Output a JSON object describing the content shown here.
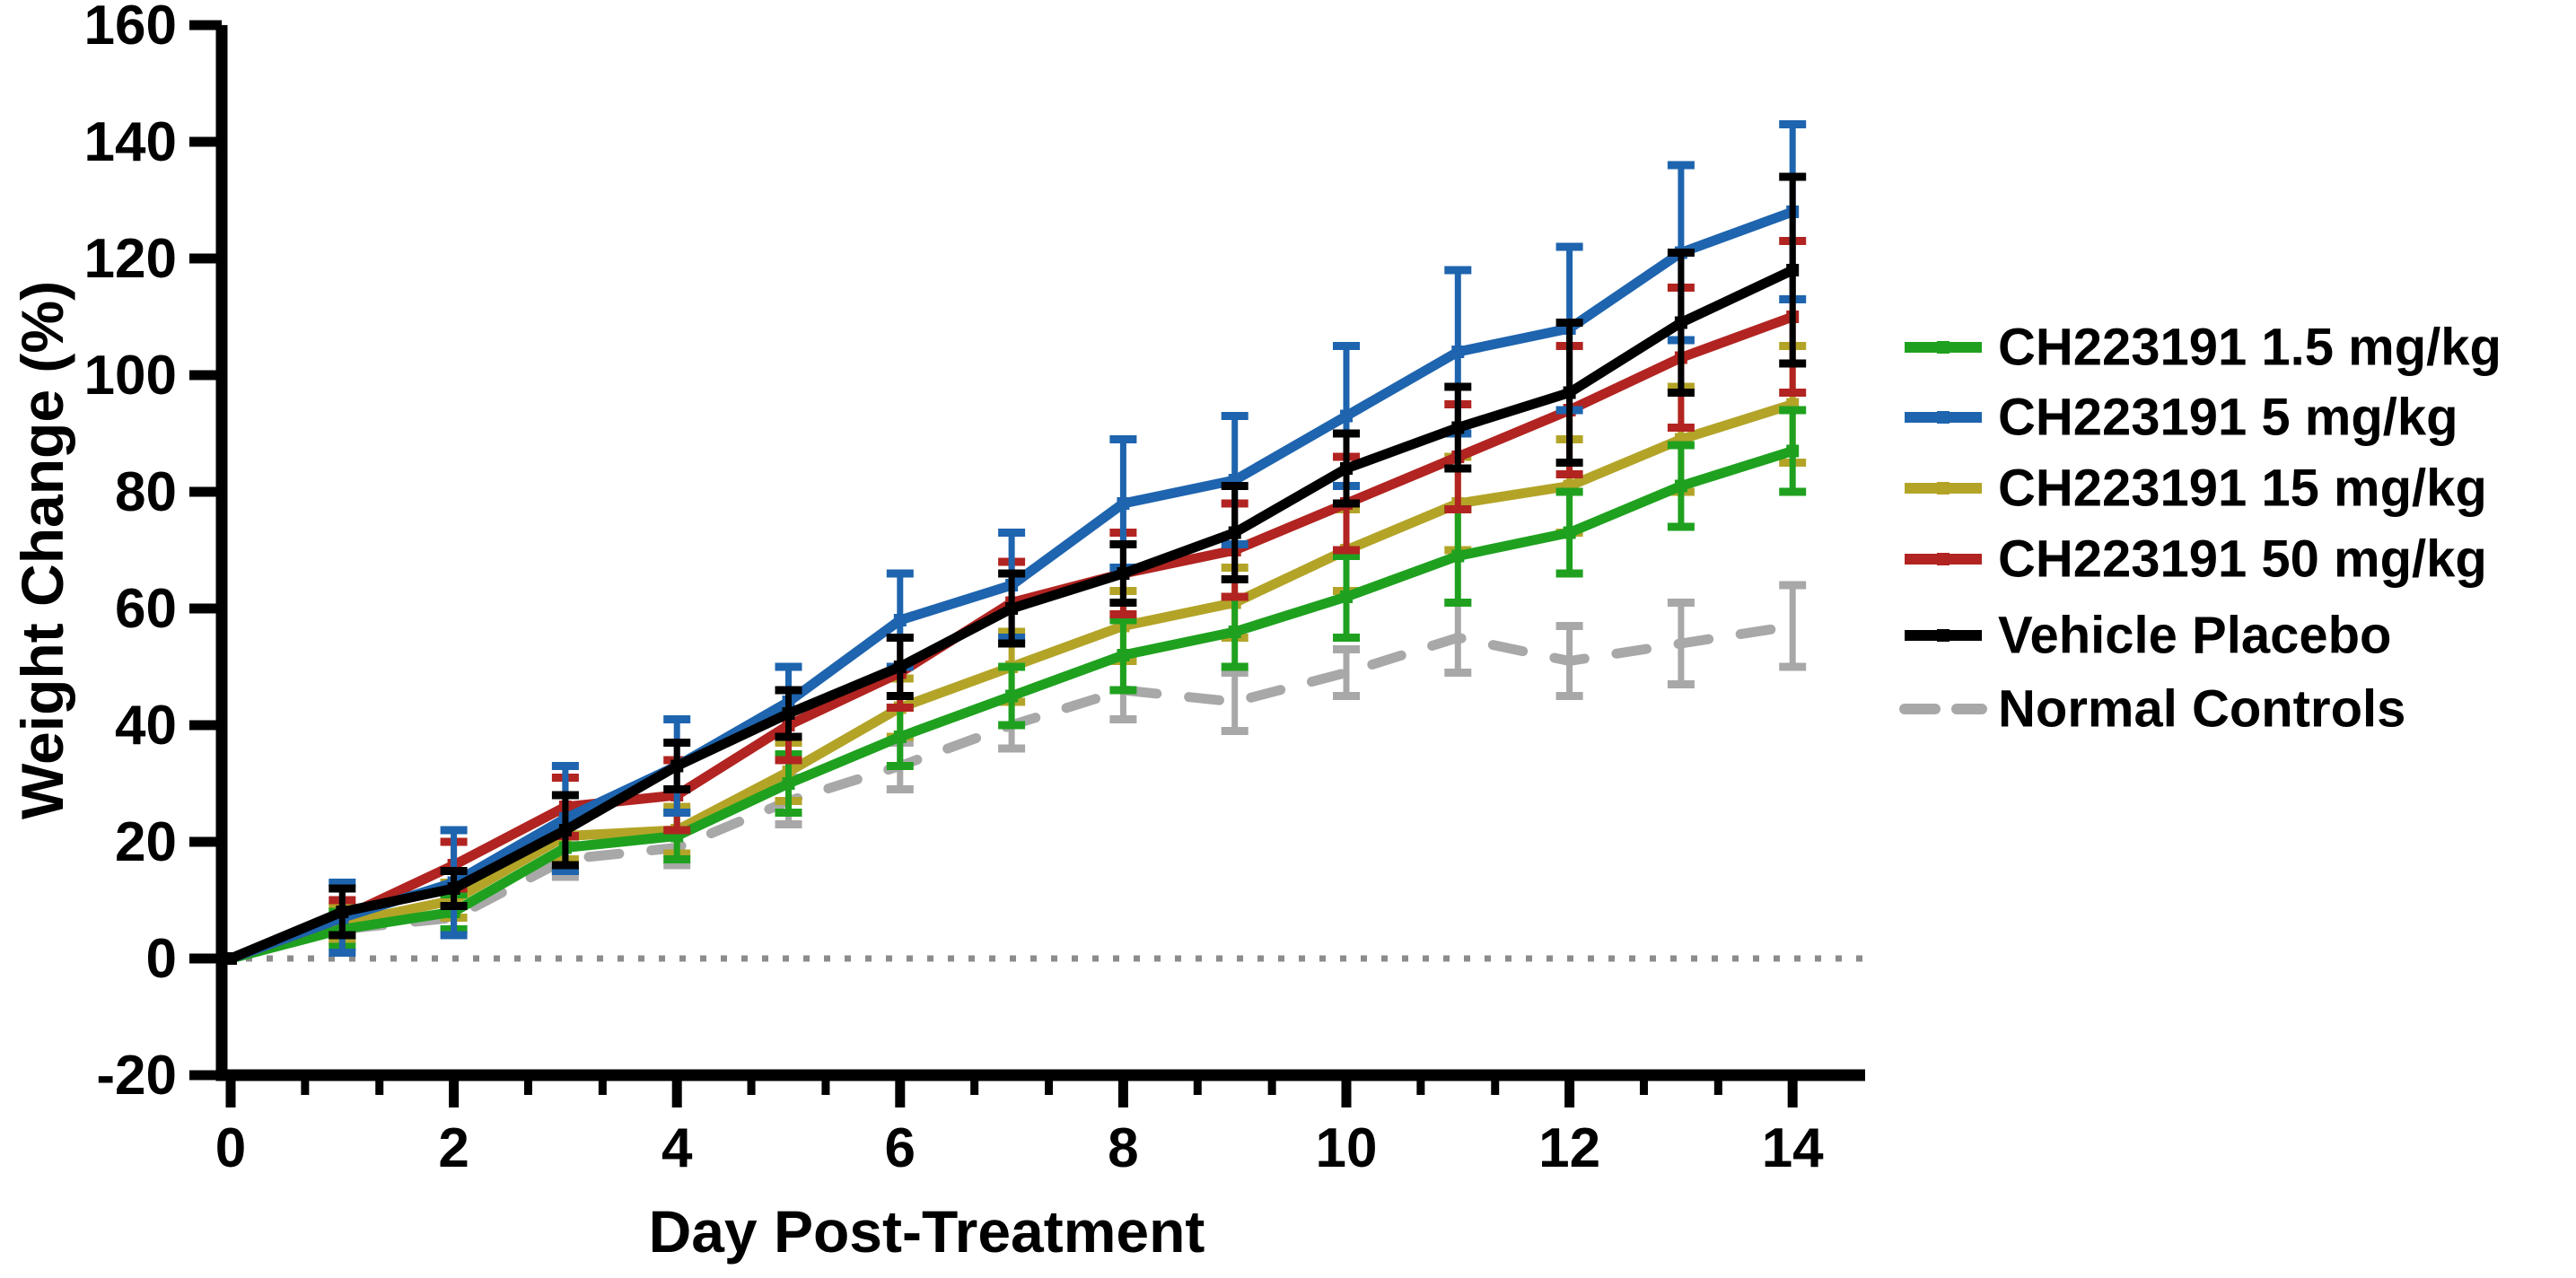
{
  "chart_data": {
    "type": "line",
    "title": "",
    "xlabel": "Day Post-Treatment",
    "ylabel": "Weight Change (%)",
    "x": [
      0,
      1,
      2,
      3,
      4,
      5,
      6,
      7,
      8,
      9,
      10,
      11,
      12,
      13,
      14
    ],
    "xticks": [
      0,
      2,
      4,
      6,
      8,
      10,
      12,
      14
    ],
    "yticks": [
      -20,
      0,
      20,
      40,
      60,
      80,
      100,
      120,
      140,
      160
    ],
    "xlim": [
      0,
      14.65
    ],
    "ylim": [
      -20,
      160
    ],
    "grid": false,
    "zero_baseline_dotted": true,
    "minor_ticks_per_major_interval": 2,
    "legend_position": "right",
    "series": [
      {
        "name": "CH223191 1.5 mg/kg",
        "color": "#1FA11F",
        "dash": "solid",
        "marker": true,
        "values": [
          0,
          5,
          8,
          19,
          21,
          30,
          38,
          45,
          52,
          56,
          62,
          69,
          73,
          81,
          87
        ],
        "errors": [
          0,
          3,
          3,
          4,
          4,
          5,
          5,
          5,
          6,
          6,
          7,
          8,
          7,
          7,
          7
        ]
      },
      {
        "name": "CH223191 5 mg/kg",
        "color": "#1E64AE",
        "dash": "solid",
        "marker": true,
        "values": [
          0,
          7,
          13,
          24,
          33,
          44,
          58,
          64,
          78,
          82,
          93,
          104,
          108,
          121,
          128
        ],
        "errors": [
          0,
          6,
          9,
          9,
          8,
          6,
          8,
          9,
          11,
          11,
          12,
          14,
          14,
          15,
          15
        ]
      },
      {
        "name": "CH223191 15 mg/kg",
        "color": "#B3A428",
        "dash": "solid",
        "marker": true,
        "values": [
          0,
          6,
          10,
          21,
          22,
          32,
          43,
          50,
          57,
          61,
          70,
          78,
          81,
          89,
          95
        ],
        "errors": [
          0,
          3,
          3,
          4,
          4,
          5,
          5,
          6,
          6,
          6,
          7,
          8,
          8,
          9,
          10
        ]
      },
      {
        "name": "CH223191 50 mg/kg",
        "color": "#B12421",
        "dash": "solid",
        "marker": true,
        "values": [
          0,
          7,
          16,
          26,
          28,
          40,
          49,
          61,
          66,
          70,
          78,
          86,
          94,
          103,
          110
        ],
        "errors": [
          0,
          3,
          4,
          5,
          6,
          6,
          6,
          7,
          7,
          8,
          8,
          9,
          11,
          12,
          13
        ]
      },
      {
        "name": "Vehicle Placebo",
        "color": "#000000",
        "dash": "solid",
        "marker": true,
        "values": [
          0,
          8,
          12,
          22,
          33,
          42,
          50,
          60,
          66,
          73,
          84,
          91,
          97,
          109,
          118
        ],
        "errors": [
          0,
          4,
          3,
          6,
          4,
          4,
          5,
          6,
          5,
          8,
          6,
          7,
          12,
          12,
          16
        ]
      },
      {
        "name": "Normal Controls",
        "color": "#A8A8A8",
        "dash": "dashed",
        "marker": false,
        "values": [
          0,
          5,
          7,
          17,
          19,
          27,
          33,
          40,
          46,
          44,
          49,
          55,
          51,
          54,
          57
        ],
        "errors": [
          0,
          2,
          2,
          3,
          3,
          4,
          4,
          4,
          5,
          5,
          4,
          6,
          6,
          7,
          7
        ]
      }
    ],
    "colors": {
      "axis": "#000000",
      "zero_dotted_line": "#8C8C8C"
    }
  }
}
